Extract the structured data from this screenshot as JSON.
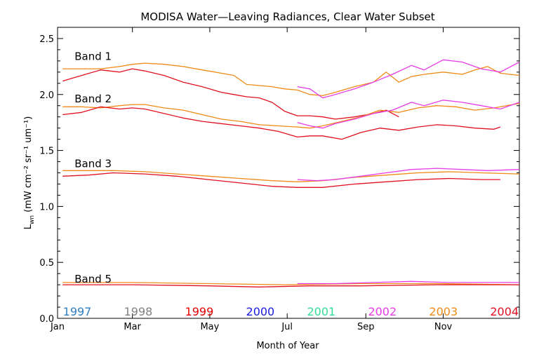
{
  "chart_data": {
    "type": "line",
    "title": "MODISA Water—Leaving Radiances, Clear Water Subset",
    "xlabel": "Month of Year",
    "ylabel_main": "L",
    "ylabel_sub": "wn",
    "ylabel_units": "(mW cm⁻² sr⁻¹ um⁻¹)",
    "xlim": [
      1,
      365
    ],
    "ylim": [
      0.0,
      2.6
    ],
    "x_ticks": [
      {
        "label": "Jan",
        "value": 1
      },
      {
        "label": "Mar",
        "value": 60
      },
      {
        "label": "May",
        "value": 121
      },
      {
        "label": "Jul",
        "value": 182
      },
      {
        "label": "Sep",
        "value": 244
      },
      {
        "label": "Nov",
        "value": 305
      }
    ],
    "y_ticks": [
      {
        "label": "0.0",
        "value": 0.0
      },
      {
        "label": "0.5",
        "value": 0.5
      },
      {
        "label": "1.0",
        "value": 1.0
      },
      {
        "label": "1.5",
        "value": 1.5
      },
      {
        "label": "2.0",
        "value": 2.0
      },
      {
        "label": "2.5",
        "value": 2.5
      }
    ],
    "band_labels": [
      {
        "text": "Band 1",
        "x": 10,
        "y": 2.34
      },
      {
        "text": "Band 2",
        "x": 10,
        "y": 1.96
      },
      {
        "text": "Band 3",
        "x": 10,
        "y": 1.38
      },
      {
        "text": "Band 5",
        "x": 10,
        "y": 0.35
      }
    ],
    "year_legend": [
      {
        "year": "1997",
        "color": "#2f7fc1"
      },
      {
        "year": "1998",
        "color": "#808080"
      },
      {
        "year": "1999",
        "color": "#e60000"
      },
      {
        "year": "2000",
        "color": "#1a1adf"
      },
      {
        "year": "2001",
        "color": "#33dd99"
      },
      {
        "year": "2002",
        "color": "#e63ce6"
      },
      {
        "year": "2003",
        "color": "#f08a16"
      },
      {
        "year": "2004",
        "color": "#e01020"
      }
    ],
    "series": [
      {
        "name": "2003",
        "band": "Band 1",
        "color": "#f08a16",
        "x": [
          5,
          20,
          35,
          50,
          60,
          70,
          85,
          100,
          115,
          130,
          140,
          150,
          160,
          170,
          180,
          190,
          200,
          210,
          220,
          235,
          250,
          260,
          270,
          280,
          290,
          305,
          320,
          330,
          340,
          350,
          365
        ],
        "y": [
          2.23,
          2.23,
          2.23,
          2.25,
          2.27,
          2.28,
          2.27,
          2.25,
          2.22,
          2.19,
          2.17,
          2.09,
          2.08,
          2.07,
          2.05,
          2.04,
          2.0,
          1.99,
          2.02,
          2.07,
          2.11,
          2.2,
          2.11,
          2.16,
          2.18,
          2.2,
          2.18,
          2.22,
          2.25,
          2.19,
          2.17
        ]
      },
      {
        "name": "2004",
        "band": "Band 1",
        "color": "#e01020",
        "x": [
          5,
          20,
          35,
          50,
          60,
          70,
          85,
          100,
          115,
          130,
          140,
          150,
          160,
          170,
          180,
          190,
          200,
          210,
          220,
          235,
          250,
          260,
          270
        ],
        "y": [
          2.12,
          2.17,
          2.22,
          2.2,
          2.23,
          2.21,
          2.17,
          2.11,
          2.07,
          2.02,
          2.0,
          1.98,
          1.97,
          1.93,
          1.85,
          1.81,
          1.81,
          1.8,
          1.78,
          1.8,
          1.83,
          1.86,
          1.8
        ]
      },
      {
        "name": "2002",
        "band": "Band 1",
        "color": "#e63ce6",
        "x": [
          190,
          200,
          210,
          220,
          235,
          250,
          265,
          280,
          290,
          305,
          320,
          335,
          350,
          365
        ],
        "y": [
          2.07,
          2.05,
          1.97,
          2.0,
          2.05,
          2.11,
          2.18,
          2.26,
          2.22,
          2.31,
          2.29,
          2.23,
          2.2,
          2.29
        ]
      },
      {
        "name": "2003",
        "band": "Band 2",
        "color": "#f08a16",
        "x": [
          5,
          20,
          35,
          50,
          60,
          70,
          85,
          100,
          115,
          130,
          145,
          160,
          175,
          190,
          200,
          210,
          225,
          240,
          255,
          270,
          285,
          300,
          315,
          330,
          345,
          365
        ],
        "y": [
          1.89,
          1.89,
          1.88,
          1.9,
          1.91,
          1.91,
          1.88,
          1.86,
          1.82,
          1.78,
          1.76,
          1.73,
          1.72,
          1.71,
          1.7,
          1.72,
          1.76,
          1.8,
          1.86,
          1.84,
          1.88,
          1.9,
          1.89,
          1.86,
          1.88,
          1.92
        ]
      },
      {
        "name": "2004",
        "band": "Band 2",
        "color": "#e01020",
        "x": [
          5,
          20,
          35,
          50,
          60,
          70,
          85,
          100,
          115,
          130,
          145,
          160,
          175,
          190,
          200,
          210,
          225,
          240,
          255,
          270,
          285,
          300,
          315,
          330,
          345,
          350
        ],
        "y": [
          1.82,
          1.84,
          1.89,
          1.87,
          1.88,
          1.87,
          1.83,
          1.79,
          1.76,
          1.74,
          1.72,
          1.7,
          1.67,
          1.62,
          1.63,
          1.63,
          1.6,
          1.66,
          1.7,
          1.68,
          1.71,
          1.73,
          1.72,
          1.7,
          1.69,
          1.71
        ]
      },
      {
        "name": "2002",
        "band": "Band 2",
        "color": "#e63ce6",
        "x": [
          190,
          200,
          210,
          220,
          235,
          250,
          265,
          280,
          290,
          305,
          320,
          335,
          350,
          365
        ],
        "y": [
          1.75,
          1.72,
          1.7,
          1.74,
          1.78,
          1.83,
          1.86,
          1.93,
          1.9,
          1.95,
          1.93,
          1.9,
          1.87,
          1.93
        ]
      },
      {
        "name": "2003",
        "band": "Band 3",
        "color": "#f08a16",
        "x": [
          5,
          25,
          45,
          70,
          95,
          120,
          145,
          170,
          190,
          210,
          235,
          260,
          285,
          310,
          335,
          365
        ],
        "y": [
          1.32,
          1.32,
          1.32,
          1.31,
          1.29,
          1.27,
          1.25,
          1.23,
          1.22,
          1.23,
          1.26,
          1.28,
          1.3,
          1.31,
          1.3,
          1.29
        ]
      },
      {
        "name": "2004",
        "band": "Band 3",
        "color": "#e01020",
        "x": [
          5,
          25,
          45,
          70,
          95,
          120,
          145,
          170,
          190,
          210,
          235,
          260,
          285,
          310,
          335,
          350
        ],
        "y": [
          1.27,
          1.28,
          1.3,
          1.29,
          1.27,
          1.24,
          1.21,
          1.18,
          1.17,
          1.17,
          1.2,
          1.22,
          1.24,
          1.25,
          1.24,
          1.24
        ]
      },
      {
        "name": "2002",
        "band": "Band 3",
        "color": "#e63ce6",
        "x": [
          190,
          205,
          220,
          240,
          260,
          280,
          300,
          320,
          340,
          365
        ],
        "y": [
          1.24,
          1.23,
          1.24,
          1.27,
          1.3,
          1.33,
          1.34,
          1.33,
          1.32,
          1.33
        ]
      },
      {
        "name": "2003",
        "band": "Band 5",
        "color": "#f08a16",
        "x": [
          5,
          60,
          120,
          180,
          240,
          300,
          365
        ],
        "y": [
          0.32,
          0.32,
          0.31,
          0.3,
          0.31,
          0.31,
          0.3
        ]
      },
      {
        "name": "2004",
        "band": "Band 5",
        "color": "#e01020",
        "x": [
          5,
          60,
          120,
          160,
          200,
          240,
          300,
          365
        ],
        "y": [
          0.3,
          0.3,
          0.29,
          0.28,
          0.29,
          0.29,
          0.3,
          0.3
        ]
      },
      {
        "name": "2002",
        "band": "Band 5",
        "color": "#e63ce6",
        "x": [
          190,
          220,
          250,
          280,
          310,
          340,
          365
        ],
        "y": [
          0.31,
          0.31,
          0.32,
          0.33,
          0.32,
          0.32,
          0.32
        ]
      }
    ]
  }
}
